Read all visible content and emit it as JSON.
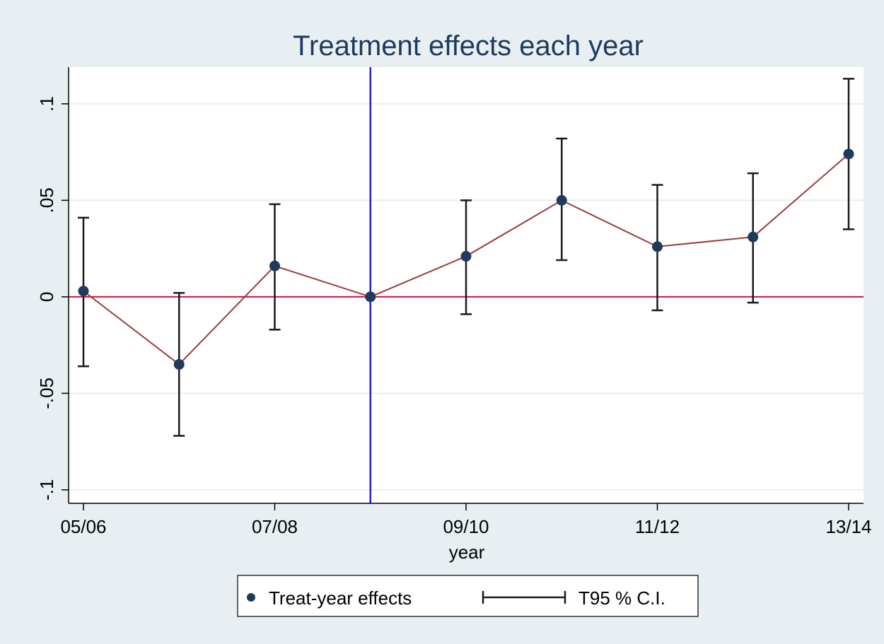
{
  "chart_data": {
    "type": "scatter",
    "title": "Treatment effects each year",
    "xlabel": "year",
    "ylabel": "",
    "x_tick_labels": [
      "05/06",
      "07/08",
      "09/10",
      "11/12",
      "13/14"
    ],
    "y_tick_labels": [
      "-.1",
      "-.05",
      "0",
      ".05",
      ".1"
    ],
    "y_ticks": [
      -0.1,
      -0.05,
      0,
      0.05,
      0.1
    ],
    "ylim": [
      -0.107,
      0.119
    ],
    "x_positions": [
      "05/06",
      "06/07",
      "07/08",
      "08/09",
      "09/10",
      "10/11",
      "11/12",
      "12/13",
      "13/14"
    ],
    "series": [
      {
        "name": "Treat-year effects",
        "values": [
          0.003,
          -0.035,
          0.016,
          0.0,
          0.021,
          0.05,
          0.026,
          0.031,
          0.074
        ],
        "marker_color": "#1f3b5c",
        "line_color": "#9b3c3c"
      },
      {
        "name": "T95 % C.I.",
        "lower": [
          -0.036,
          -0.072,
          -0.017,
          0.0,
          -0.009,
          0.019,
          -0.007,
          -0.003,
          0.035
        ],
        "upper": [
          0.041,
          0.002,
          0.048,
          0.0,
          0.05,
          0.082,
          0.058,
          0.064,
          0.113
        ],
        "color": "#1a1a1a"
      }
    ],
    "reference_lines": {
      "horizontal_zero_color": "#d11240",
      "vertical_at": "08/09",
      "vertical_color": "#2020e0"
    },
    "colors": {
      "background": "#e8eff2",
      "plot_background": "#ffffff",
      "grid": "#e8eef1",
      "title": "#1e3a5c",
      "axis": "#000000"
    },
    "grid": true,
    "legend_position": "bottom"
  }
}
